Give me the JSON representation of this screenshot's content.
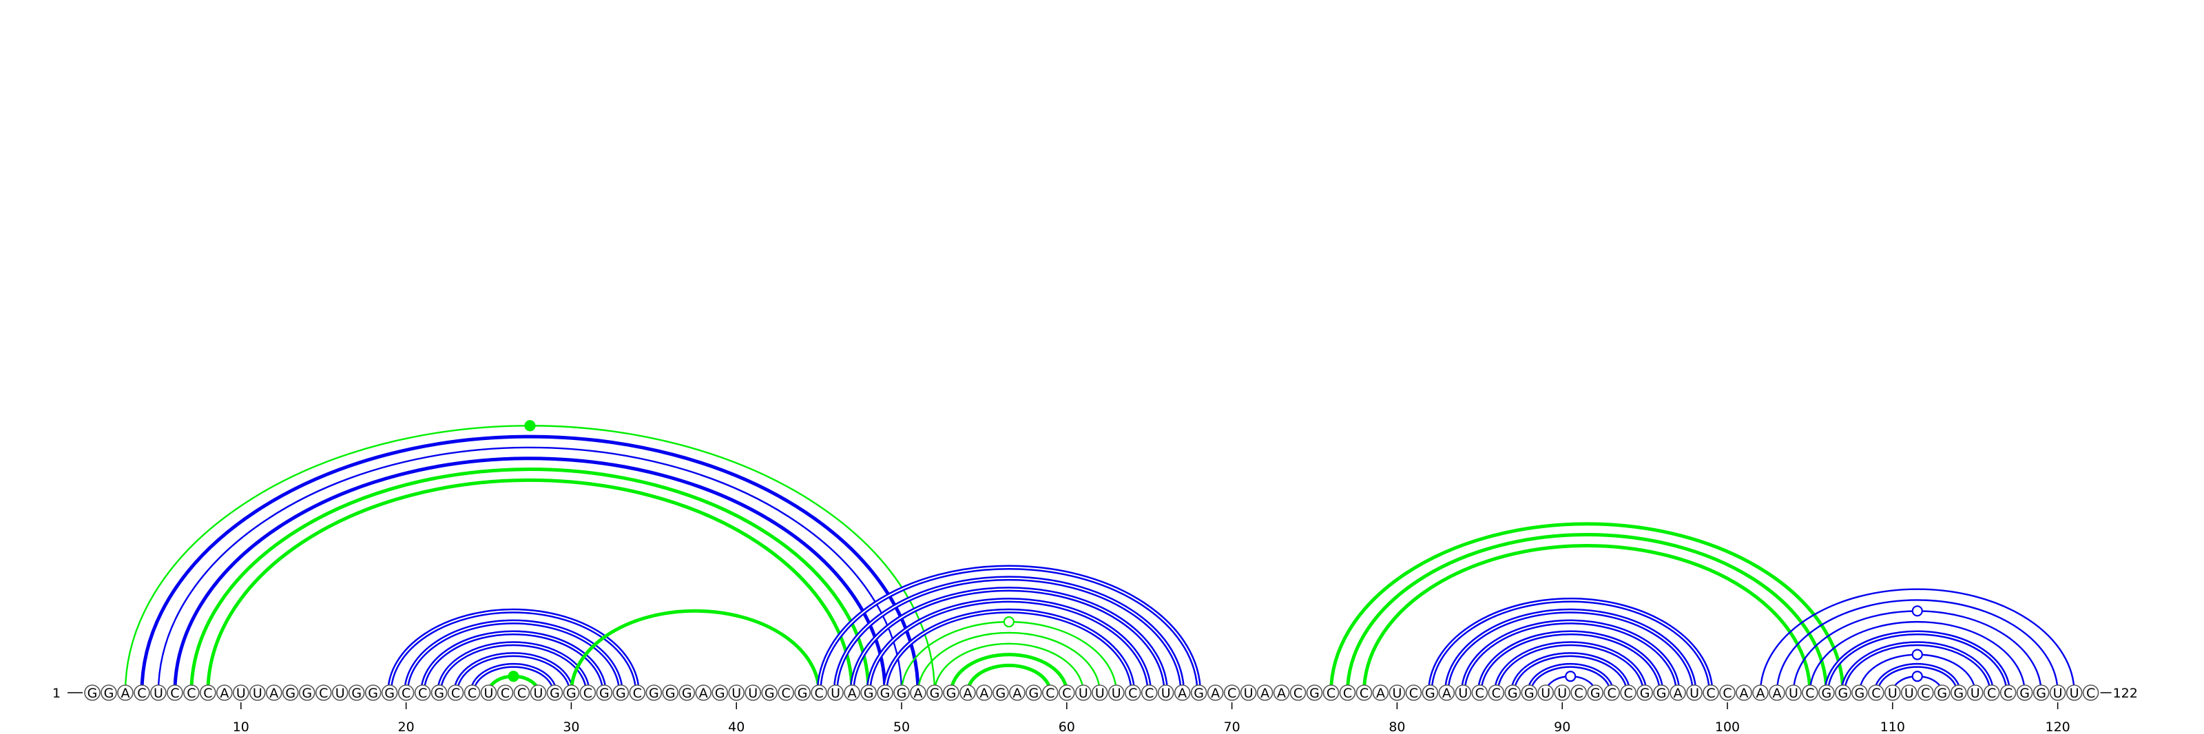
{
  "sequence": "GGACUCCCAUUAGGCUGGGCCGCCUCCUGGCGGCGGGAGUUGCGCUAGGGAGGAAGAGCCUUUCCUAGACUAACGCCCAUCGAUCCGGUUCGCCGGAUCCAAAUCGGGCUUCGGUCCGGUUC",
  "start_label": "1",
  "end_label": "122",
  "ticks": [
    {
      "pos": 10,
      "label": "10"
    },
    {
      "pos": 20,
      "label": "20"
    },
    {
      "pos": 30,
      "label": "30"
    },
    {
      "pos": 40,
      "label": "40"
    },
    {
      "pos": 50,
      "label": "50"
    },
    {
      "pos": 60,
      "label": "60"
    },
    {
      "pos": 70,
      "label": "70"
    },
    {
      "pos": 80,
      "label": "80"
    },
    {
      "pos": 90,
      "label": "90"
    },
    {
      "pos": 100,
      "label": "100"
    },
    {
      "pos": 110,
      "label": "110"
    },
    {
      "pos": 120,
      "label": "120"
    }
  ],
  "colors": {
    "primary_pairs": "#0000ee",
    "alternate_pairs": "#00ee00"
  },
  "arcs": [
    {
      "i": 3,
      "j": 52,
      "color": "#00ee00",
      "thickness": "thin",
      "marker": "filled"
    },
    {
      "i": 4,
      "j": 51,
      "color": "#0000ee",
      "thickness": "thick"
    },
    {
      "i": 5,
      "j": 50,
      "color": "#0000ee",
      "thickness": "thin"
    },
    {
      "i": 6,
      "j": 49,
      "color": "#0000ee",
      "thickness": "thick"
    },
    {
      "i": 7,
      "j": 48,
      "color": "#00ee00",
      "thickness": "thick"
    },
    {
      "i": 8,
      "j": 47,
      "color": "#00ee00",
      "thickness": "thick"
    },
    {
      "i": 19,
      "j": 34,
      "color": "#0000ee",
      "thickness": "double"
    },
    {
      "i": 20,
      "j": 33,
      "color": "#0000ee",
      "thickness": "double"
    },
    {
      "i": 21,
      "j": 32,
      "color": "#0000ee",
      "thickness": "double"
    },
    {
      "i": 22,
      "j": 31,
      "color": "#0000ee",
      "thickness": "double"
    },
    {
      "i": 23,
      "j": 30,
      "color": "#0000ee",
      "thickness": "double"
    },
    {
      "i": 24,
      "j": 29,
      "color": "#0000ee",
      "thickness": "double"
    },
    {
      "i": 25,
      "j": 28,
      "color": "#00ee00",
      "thickness": "thick",
      "marker": "filled"
    },
    {
      "i": 30,
      "j": 45,
      "color": "#00ee00",
      "thickness": "thick"
    },
    {
      "i": 45,
      "j": 68,
      "color": "#0000ee",
      "thickness": "double"
    },
    {
      "i": 46,
      "j": 67,
      "color": "#0000ee",
      "thickness": "double"
    },
    {
      "i": 47,
      "j": 66,
      "color": "#0000ee",
      "thickness": "double"
    },
    {
      "i": 48,
      "j": 65,
      "color": "#0000ee",
      "thickness": "double"
    },
    {
      "i": 49,
      "j": 64,
      "color": "#0000ee",
      "thickness": "double"
    },
    {
      "i": 50,
      "j": 63,
      "color": "#00ee00",
      "thickness": "thin",
      "marker": "open"
    },
    {
      "i": 51,
      "j": 62,
      "color": "#00ee00",
      "thickness": "thin"
    },
    {
      "i": 52,
      "j": 61,
      "color": "#00ee00",
      "thickness": "thin"
    },
    {
      "i": 53,
      "j": 60,
      "color": "#00ee00",
      "thickness": "thick"
    },
    {
      "i": 54,
      "j": 59,
      "color": "#00ee00",
      "thickness": "thick"
    },
    {
      "i": 76,
      "j": 107,
      "color": "#00ee00",
      "thickness": "thick"
    },
    {
      "i": 77,
      "j": 106,
      "color": "#00ee00",
      "thickness": "thick"
    },
    {
      "i": 78,
      "j": 105,
      "color": "#00ee00",
      "thickness": "thick"
    },
    {
      "i": 82,
      "j": 99,
      "color": "#0000ee",
      "thickness": "double"
    },
    {
      "i": 83,
      "j": 98,
      "color": "#0000ee",
      "thickness": "double"
    },
    {
      "i": 84,
      "j": 97,
      "color": "#0000ee",
      "thickness": "double"
    },
    {
      "i": 85,
      "j": 96,
      "color": "#0000ee",
      "thickness": "double"
    },
    {
      "i": 86,
      "j": 95,
      "color": "#0000ee",
      "thickness": "double"
    },
    {
      "i": 87,
      "j": 94,
      "color": "#0000ee",
      "thickness": "double"
    },
    {
      "i": 88,
      "j": 93,
      "color": "#0000ee",
      "thickness": "double"
    },
    {
      "i": 89,
      "j": 92,
      "color": "#0000ee",
      "thickness": "thin",
      "marker": "open"
    },
    {
      "i": 102,
      "j": 121,
      "color": "#0000ee",
      "thickness": "thin"
    },
    {
      "i": 103,
      "j": 120,
      "color": "#0000ee",
      "thickness": "thin"
    },
    {
      "i": 104,
      "j": 119,
      "color": "#0000ee",
      "thickness": "thin",
      "marker": "open"
    },
    {
      "i": 105,
      "j": 118,
      "color": "#0000ee",
      "thickness": "thin"
    },
    {
      "i": 106,
      "j": 117,
      "color": "#0000ee",
      "thickness": "double"
    },
    {
      "i": 107,
      "j": 116,
      "color": "#0000ee",
      "thickness": "double"
    },
    {
      "i": 108,
      "j": 115,
      "color": "#0000ee",
      "thickness": "thin",
      "marker": "open"
    },
    {
      "i": 109,
      "j": 114,
      "color": "#0000ee",
      "thickness": "double"
    },
    {
      "i": 110,
      "j": 113,
      "color": "#0000ee",
      "thickness": "thin",
      "marker": "open"
    }
  ]
}
